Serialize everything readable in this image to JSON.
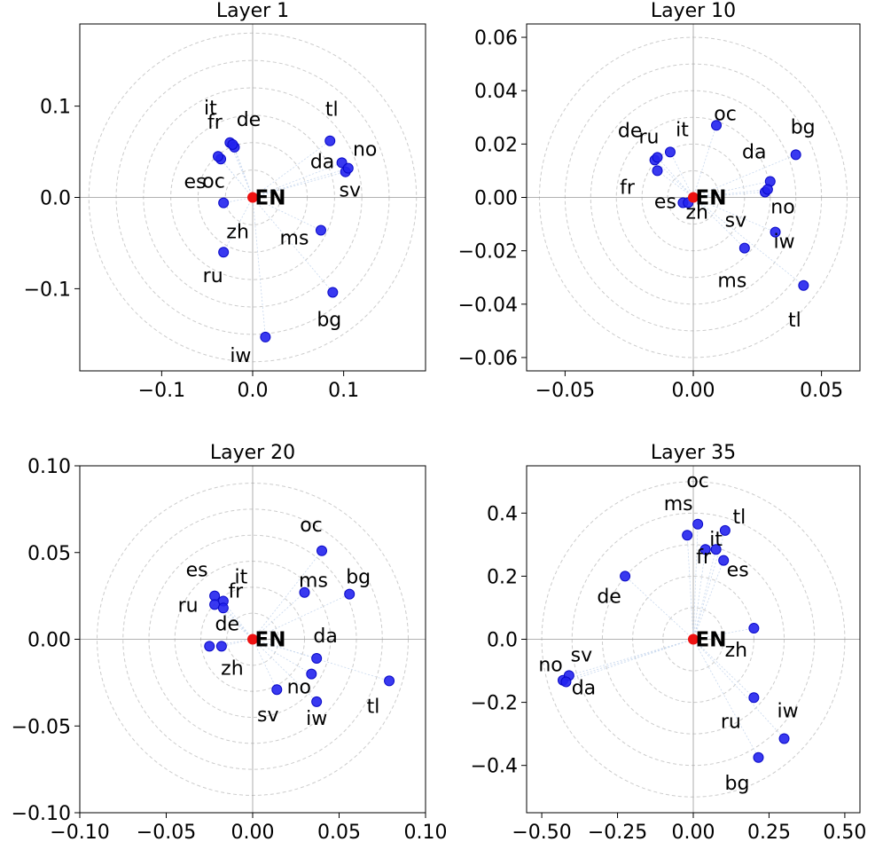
{
  "colors": {
    "point": "#2323ee",
    "point_edge": "#0a0ac8",
    "origin": "#ee1111",
    "circle": "#cccccc",
    "axis_line": "#999999",
    "spoke": "#c8d8ee"
  },
  "origin_label": "EN",
  "chart_data": [
    {
      "type": "scatter",
      "title": "Layer 1",
      "xlim": [
        -0.19,
        0.19
      ],
      "ylim": [
        -0.19,
        0.19
      ],
      "xticks": [
        -0.1,
        0.0,
        0.1
      ],
      "xtick_labels": [
        "−0.1",
        "0.0",
        "0.1"
      ],
      "yticks": [
        -0.1,
        0.0,
        0.1
      ],
      "ytick_labels": [
        "−0.1",
        "0.0",
        "0.1"
      ],
      "circle_radii": [
        0.03,
        0.06,
        0.09,
        0.12,
        0.15,
        0.18
      ],
      "points": [
        {
          "label": "it",
          "x": -0.025,
          "y": 0.06
        },
        {
          "label": "de",
          "x": -0.02,
          "y": 0.055
        },
        {
          "label": "fr",
          "x": -0.022,
          "y": 0.058
        },
        {
          "label": "oc",
          "x": -0.035,
          "y": 0.042
        },
        {
          "label": "es",
          "x": -0.038,
          "y": 0.045
        },
        {
          "label": "zh",
          "x": -0.032,
          "y": -0.006
        },
        {
          "label": "ru",
          "x": -0.032,
          "y": -0.06
        },
        {
          "label": "tl",
          "x": 0.085,
          "y": 0.062
        },
        {
          "label": "da",
          "x": 0.098,
          "y": 0.038
        },
        {
          "label": "no",
          "x": 0.102,
          "y": 0.028
        },
        {
          "label": "sv",
          "x": 0.105,
          "y": 0.032
        },
        {
          "label": "ms",
          "x": 0.075,
          "y": -0.036
        },
        {
          "label": "bg",
          "x": 0.088,
          "y": -0.104
        },
        {
          "label": "iw",
          "x": 0.014,
          "y": -0.153
        }
      ]
    },
    {
      "type": "scatter",
      "title": "Layer 10",
      "xlim": [
        -0.065,
        0.065
      ],
      "ylim": [
        -0.065,
        0.065
      ],
      "xticks": [
        -0.05,
        0.0,
        0.05
      ],
      "xtick_labels": [
        "−0.05",
        "0.00",
        "0.05"
      ],
      "yticks": [
        -0.06,
        -0.04,
        -0.02,
        0.0,
        0.02,
        0.04,
        0.06
      ],
      "ytick_labels": [
        "−0.06",
        "−0.04",
        "−0.02",
        "0.00",
        "0.02",
        "0.04",
        "0.06"
      ],
      "circle_radii": [
        0.01,
        0.02,
        0.03,
        0.04,
        0.05,
        0.06
      ],
      "points": [
        {
          "label": "de",
          "x": -0.015,
          "y": 0.014
        },
        {
          "label": "ru",
          "x": -0.009,
          "y": 0.017
        },
        {
          "label": "it",
          "x": -0.014,
          "y": 0.015
        },
        {
          "label": "oc",
          "x": 0.009,
          "y": 0.027
        },
        {
          "label": "fr",
          "x": -0.014,
          "y": 0.01
        },
        {
          "label": "es",
          "x": -0.004,
          "y": -0.002
        },
        {
          "label": "zh",
          "x": -0.002,
          "y": -0.002
        },
        {
          "label": "bg",
          "x": 0.04,
          "y": 0.016
        },
        {
          "label": "da",
          "x": 0.03,
          "y": 0.006
        },
        {
          "label": "no",
          "x": 0.028,
          "y": 0.002
        },
        {
          "label": "sv",
          "x": 0.029,
          "y": 0.003
        },
        {
          "label": "iw",
          "x": 0.032,
          "y": -0.013
        },
        {
          "label": "ms",
          "x": 0.02,
          "y": -0.019
        },
        {
          "label": "tl",
          "x": 0.043,
          "y": -0.033
        }
      ]
    },
    {
      "type": "scatter",
      "title": "Layer 20",
      "xlim": [
        -0.1,
        0.1
      ],
      "ylim": [
        -0.1,
        0.1
      ],
      "xticks": [
        -0.1,
        -0.05,
        0.0,
        0.05,
        0.1
      ],
      "xtick_labels": [
        "−0.10",
        "−0.05",
        "0.00",
        "0.05",
        "0.10"
      ],
      "yticks": [
        -0.1,
        -0.05,
        0.0,
        0.05,
        0.1
      ],
      "ytick_labels": [
        "−0.10",
        "−0.05",
        "0.00",
        "0.05",
        "0.10"
      ],
      "circle_radii": [
        0.015,
        0.03,
        0.045,
        0.06,
        0.075,
        0.09
      ],
      "points": [
        {
          "label": "es",
          "x": -0.022,
          "y": 0.025
        },
        {
          "label": "it",
          "x": -0.017,
          "y": 0.022
        },
        {
          "label": "ru",
          "x": -0.022,
          "y": 0.02
        },
        {
          "label": "fr",
          "x": -0.017,
          "y": 0.018
        },
        {
          "label": "de",
          "x": -0.025,
          "y": -0.004
        },
        {
          "label": "zh",
          "x": -0.018,
          "y": -0.004
        },
        {
          "label": "oc",
          "x": 0.04,
          "y": 0.051
        },
        {
          "label": "bg",
          "x": 0.056,
          "y": 0.026
        },
        {
          "label": "ms",
          "x": 0.03,
          "y": 0.027
        },
        {
          "label": "da",
          "x": 0.037,
          "y": -0.011
        },
        {
          "label": "no",
          "x": 0.034,
          "y": -0.02
        },
        {
          "label": "iw",
          "x": 0.037,
          "y": -0.036
        },
        {
          "label": "sv",
          "x": 0.014,
          "y": -0.029
        },
        {
          "label": "tl",
          "x": 0.079,
          "y": -0.024
        }
      ]
    },
    {
      "type": "scatter",
      "title": "Layer 35",
      "xlim": [
        -0.55,
        0.55
      ],
      "ylim": [
        -0.55,
        0.55
      ],
      "xticks": [
        -0.5,
        -0.25,
        0.0,
        0.25,
        0.5
      ],
      "xtick_labels": [
        "−0.50",
        "−0.25",
        "0.00",
        "0.25",
        "0.50"
      ],
      "yticks": [
        -0.4,
        -0.2,
        0.0,
        0.2,
        0.4
      ],
      "ytick_labels": [
        "−0.4",
        "−0.2",
        "0.0",
        "0.2",
        "0.4"
      ],
      "circle_radii": [
        0.1,
        0.2,
        0.3,
        0.4,
        0.5
      ],
      "points": [
        {
          "label": "oc",
          "x": 0.015,
          "y": 0.365
        },
        {
          "label": "ms",
          "x": -0.02,
          "y": 0.33
        },
        {
          "label": "it",
          "x": 0.075,
          "y": 0.285
        },
        {
          "label": "tl",
          "x": 0.105,
          "y": 0.345
        },
        {
          "label": "fr",
          "x": 0.04,
          "y": 0.285
        },
        {
          "label": "es",
          "x": 0.1,
          "y": 0.25
        },
        {
          "label": "de",
          "x": -0.225,
          "y": 0.2
        },
        {
          "label": "zh",
          "x": 0.2,
          "y": 0.035
        },
        {
          "label": "no",
          "x": -0.43,
          "y": -0.13
        },
        {
          "label": "sv",
          "x": -0.41,
          "y": -0.115
        },
        {
          "label": "da",
          "x": -0.42,
          "y": -0.135
        },
        {
          "label": "ru",
          "x": 0.2,
          "y": -0.185
        },
        {
          "label": "iw",
          "x": 0.3,
          "y": -0.315
        },
        {
          "label": "bg",
          "x": 0.215,
          "y": -0.375
        }
      ]
    }
  ]
}
